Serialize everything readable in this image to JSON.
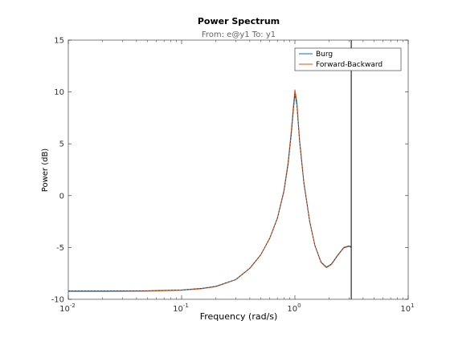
{
  "chart_data": {
    "type": "line",
    "title": "Power Spectrum",
    "subtitle": "From: e@y1  To: y1",
    "xlabel": "Frequency  (rad/s)",
    "ylabel": "Power (dB)",
    "xscale": "log",
    "xlim": [
      0.01,
      10
    ],
    "ylim": [
      -10,
      15
    ],
    "xticks": [
      {
        "value": 0.01,
        "base": "10",
        "exp": "-2"
      },
      {
        "value": 0.1,
        "base": "10",
        "exp": "-1"
      },
      {
        "value": 1,
        "base": "10",
        "exp": "0"
      },
      {
        "value": 10,
        "base": "10",
        "exp": "1"
      }
    ],
    "yticks": [
      {
        "value": -10,
        "label": "-10"
      },
      {
        "value": -5,
        "label": "-5"
      },
      {
        "value": 0,
        "label": "0"
      },
      {
        "value": 5,
        "label": "5"
      },
      {
        "value": 10,
        "label": "10"
      },
      {
        "value": 15,
        "label": "15"
      }
    ],
    "grid": false,
    "legend_position": "top-right",
    "nyquist_line": 3.14159,
    "series": [
      {
        "name": "Burg",
        "color": "#0072bd",
        "x": [
          0.01,
          0.02,
          0.05,
          0.1,
          0.15,
          0.2,
          0.3,
          0.4,
          0.5,
          0.6,
          0.7,
          0.8,
          0.87,
          0.93,
          0.97,
          1.0,
          1.04,
          1.1,
          1.2,
          1.35,
          1.5,
          1.7,
          1.9,
          2.1,
          2.4,
          2.7,
          3.0,
          3.14159
        ],
        "y": [
          -9.2,
          -9.2,
          -9.18,
          -9.1,
          -8.95,
          -8.75,
          -8.1,
          -7.0,
          -5.7,
          -4.1,
          -2.2,
          0.4,
          3.0,
          6.0,
          8.3,
          9.8,
          8.8,
          5.2,
          1.2,
          -2.5,
          -4.8,
          -6.4,
          -6.9,
          -6.6,
          -5.7,
          -5.0,
          -4.85,
          -4.95
        ]
      },
      {
        "name": "Forward-Backward",
        "color": "#d95319",
        "x": [
          0.01,
          0.02,
          0.05,
          0.1,
          0.15,
          0.2,
          0.3,
          0.4,
          0.5,
          0.6,
          0.7,
          0.8,
          0.87,
          0.93,
          0.97,
          1.0,
          1.04,
          1.1,
          1.2,
          1.35,
          1.5,
          1.7,
          1.9,
          2.1,
          2.4,
          2.7,
          3.0,
          3.14159
        ],
        "y": [
          -9.25,
          -9.25,
          -9.22,
          -9.13,
          -8.98,
          -8.78,
          -8.12,
          -7.02,
          -5.72,
          -4.1,
          -2.15,
          0.5,
          3.2,
          6.3,
          8.7,
          10.2,
          9.1,
          5.4,
          1.3,
          -2.45,
          -4.8,
          -6.45,
          -6.95,
          -6.65,
          -5.75,
          -5.05,
          -4.9,
          -5.0
        ]
      }
    ]
  }
}
